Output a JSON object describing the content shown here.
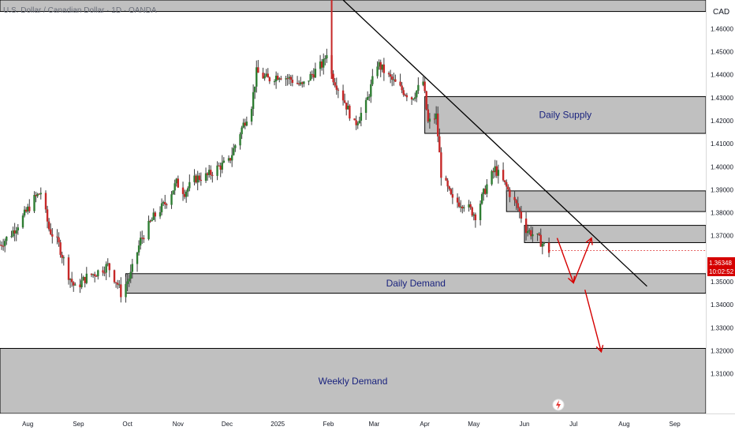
{
  "header": {
    "symbol_title": "U.S. Dollar / Canadian Dollar · 1D · OANDA",
    "currency": "CAD"
  },
  "price_tag": {
    "price": "1.36348",
    "countdown": "10:02:52"
  },
  "chart_data": {
    "type": "candlestick",
    "title": "U.S. Dollar / Canadian Dollar · 1D · OANDA",
    "ylabel": "CAD",
    "ylim": [
      1.2927,
      1.4725
    ],
    "y_ticks": [
      "1.46000",
      "1.45000",
      "1.44000",
      "1.43000",
      "1.42000",
      "1.41000",
      "1.40000",
      "1.39000",
      "1.38000",
      "1.37000",
      "1.35000",
      "1.34000",
      "1.33000",
      "1.32000",
      "1.31000"
    ],
    "x_ticks": [
      {
        "label": "Aug",
        "date": "2024-08-01"
      },
      {
        "label": "Sep",
        "date": "2024-09-01"
      },
      {
        "label": "Oct",
        "date": "2024-10-01"
      },
      {
        "label": "Nov",
        "date": "2024-11-01"
      },
      {
        "label": "Dec",
        "date": "2024-12-01"
      },
      {
        "label": "2025",
        "date": "2025-01-01"
      },
      {
        "label": "Feb",
        "date": "2025-02-01"
      },
      {
        "label": "Mar",
        "date": "2025-03-01"
      },
      {
        "label": "Apr",
        "date": "2025-04-01"
      },
      {
        "label": "May",
        "date": "2025-05-01"
      },
      {
        "label": "Jun",
        "date": "2025-06-01"
      },
      {
        "label": "Jul",
        "date": "2025-07-01"
      },
      {
        "label": "Aug",
        "date": "2025-08-01"
      },
      {
        "label": "Sep",
        "date": "2025-09-01"
      }
    ],
    "xlim": [
      "2024-07-15",
      "2025-09-20"
    ],
    "price_path": [
      [
        "2024-07-15",
        1.366
      ],
      [
        "2024-07-22",
        1.371
      ],
      [
        "2024-07-29",
        1.378
      ],
      [
        "2024-08-05",
        1.386
      ],
      [
        "2024-08-09",
        1.389
      ],
      [
        "2024-08-14",
        1.373
      ],
      [
        "2024-08-20",
        1.366
      ],
      [
        "2024-08-26",
        1.353
      ],
      [
        "2024-08-30",
        1.347
      ],
      [
        "2024-09-06",
        1.352
      ],
      [
        "2024-09-12",
        1.354
      ],
      [
        "2024-09-19",
        1.357
      ],
      [
        "2024-09-25",
        1.349
      ],
      [
        "2024-09-27",
        1.345
      ],
      [
        "2024-10-03",
        1.353
      ],
      [
        "2024-10-09",
        1.368
      ],
      [
        "2024-10-17",
        1.378
      ],
      [
        "2024-10-24",
        1.384
      ],
      [
        "2024-10-31",
        1.393
      ],
      [
        "2024-11-05",
        1.389
      ],
      [
        "2024-11-12",
        1.395
      ],
      [
        "2024-11-19",
        1.396
      ],
      [
        "2024-11-26",
        1.4
      ],
      [
        "2024-12-02",
        1.402
      ],
      [
        "2024-12-09",
        1.415
      ],
      [
        "2024-12-16",
        1.427
      ],
      [
        "2024-12-19",
        1.441
      ],
      [
        "2024-12-26",
        1.438
      ],
      [
        "2025-01-02",
        1.44
      ],
      [
        "2025-01-09",
        1.438
      ],
      [
        "2025-01-16",
        1.435
      ],
      [
        "2025-01-23",
        1.441
      ],
      [
        "2025-01-29",
        1.445
      ],
      [
        "2025-02-02",
        1.455
      ],
      [
        "2025-02-03",
        1.44
      ],
      [
        "2025-02-10",
        1.43
      ],
      [
        "2025-02-17",
        1.418
      ],
      [
        "2025-02-24",
        1.427
      ],
      [
        "2025-03-03",
        1.445
      ],
      [
        "2025-03-10",
        1.439
      ],
      [
        "2025-03-17",
        1.434
      ],
      [
        "2025-03-24",
        1.43
      ],
      [
        "2025-03-31",
        1.437
      ],
      [
        "2025-04-03",
        1.419
      ],
      [
        "2025-04-08",
        1.422
      ],
      [
        "2025-04-11",
        1.397
      ],
      [
        "2025-04-18",
        1.385
      ],
      [
        "2025-04-25",
        1.384
      ],
      [
        "2025-05-02",
        1.379
      ],
      [
        "2025-05-09",
        1.392
      ],
      [
        "2025-05-14",
        1.399
      ],
      [
        "2025-05-21",
        1.391
      ],
      [
        "2025-05-28",
        1.382
      ],
      [
        "2025-06-02",
        1.373
      ],
      [
        "2025-06-09",
        1.369
      ],
      [
        "2025-06-16",
        1.3635
      ]
    ],
    "candle_colors": {
      "up": "#2e7d32",
      "down": "#c62828",
      "wick": "#3b3b3b"
    },
    "zones": [
      {
        "label": "",
        "top": 1.4725,
        "bottom": 1.4675,
        "start": "2024-07-15",
        "end": "2025-09-20"
      },
      {
        "label": "Daily Supply",
        "top": 1.4305,
        "bottom": 1.4145,
        "start": "2025-04-01",
        "end": "2025-09-20"
      },
      {
        "label": "",
        "top": 1.3895,
        "bottom": 1.3805,
        "start": "2025-05-21",
        "end": "2025-09-20"
      },
      {
        "label": "",
        "top": 1.3745,
        "bottom": 1.367,
        "start": "2025-06-01",
        "end": "2025-09-20"
      },
      {
        "label": "Daily Demand",
        "top": 1.3535,
        "bottom": 1.345,
        "start": "2024-09-30",
        "end": "2025-09-20"
      },
      {
        "label": "Weekly Demand",
        "top": 1.321,
        "bottom": 1.2927,
        "start": "2024-07-15",
        "end": "2025-09-20"
      }
    ],
    "trendline": {
      "start": [
        "2025-02-10",
        1.4725
      ],
      "end": [
        "2025-08-15",
        1.348
      ],
      "color": "#000000"
    },
    "projection": {
      "color": "#d50000",
      "points": [
        [
          "2025-06-21",
          1.369
        ],
        [
          "2025-07-01",
          1.3495
        ],
        [
          "2025-07-12",
          1.369
        ],
        [
          "2025-07-08",
          1.3465
        ],
        [
          "2025-07-18",
          1.3195
        ]
      ]
    },
    "zone_color": "#9e9e9e",
    "grid": false
  }
}
